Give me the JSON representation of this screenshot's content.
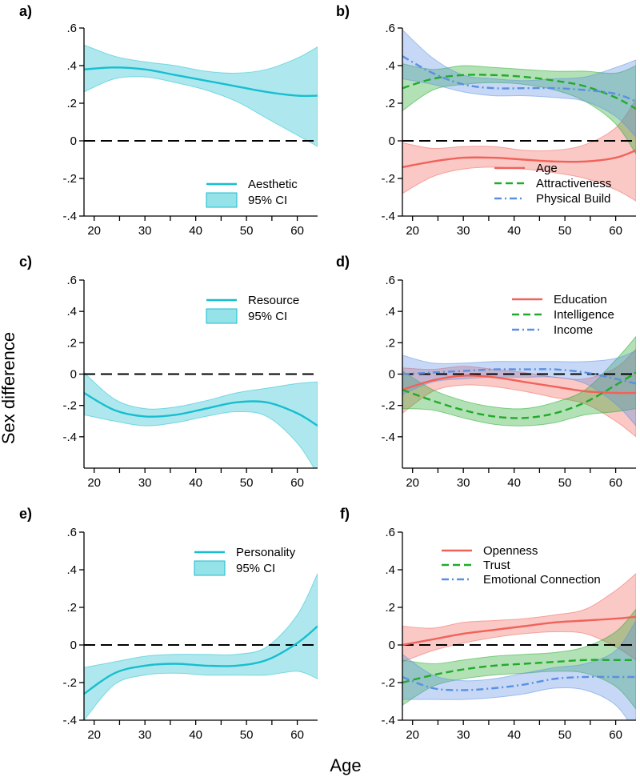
{
  "figure": {
    "ylabel": "Sex difference",
    "xlabel": "Age",
    "colors": {
      "cyan": "#17becf",
      "red": "#f0625a",
      "green": "#22aa2c",
      "blue": "#5b8fe3"
    }
  },
  "chart_data": [
    {
      "type": "line",
      "panel": "a)",
      "xticks": [
        "20",
        "30",
        "40",
        "50",
        "60"
      ],
      "yticks": [
        ".6",
        ".4",
        ".2",
        "0",
        "-.2",
        "-.4"
      ],
      "xlim": [
        18,
        64
      ],
      "ylim": [
        -0.4,
        0.6
      ],
      "legend_position": "bottom-right",
      "reference_line": 0,
      "series": [
        {
          "name": "Aesthetic",
          "ci_name": "95% CI",
          "color": "#17becf",
          "style": "solid",
          "x": [
            18,
            24,
            30,
            36,
            42,
            48,
            54,
            60,
            64
          ],
          "y": [
            0.38,
            0.39,
            0.38,
            0.35,
            0.32,
            0.29,
            0.26,
            0.24,
            0.24
          ],
          "lower": [
            0.26,
            0.33,
            0.34,
            0.31,
            0.27,
            0.21,
            0.12,
            0.03,
            -0.03
          ],
          "upper": [
            0.51,
            0.45,
            0.42,
            0.4,
            0.37,
            0.36,
            0.38,
            0.44,
            0.5
          ]
        }
      ]
    },
    {
      "type": "line",
      "panel": "b)",
      "xticks": [
        "20",
        "30",
        "40",
        "50",
        "60"
      ],
      "yticks": [
        ".6",
        ".4",
        ".2",
        "0",
        "-.2",
        "-.4"
      ],
      "xlim": [
        18,
        64
      ],
      "ylim": [
        -0.4,
        0.6
      ],
      "legend_position": "bottom-right",
      "reference_line": 0,
      "series": [
        {
          "name": "Age",
          "color": "#f0625a",
          "style": "solid",
          "x": [
            18,
            24,
            30,
            36,
            42,
            48,
            54,
            60,
            64
          ],
          "y": [
            -0.14,
            -0.11,
            -0.09,
            -0.09,
            -0.1,
            -0.11,
            -0.11,
            -0.09,
            -0.05
          ],
          "lower": [
            -0.28,
            -0.19,
            -0.15,
            -0.14,
            -0.15,
            -0.17,
            -0.2,
            -0.26,
            -0.32
          ],
          "upper": [
            -0.01,
            -0.04,
            -0.03,
            -0.03,
            -0.05,
            -0.05,
            -0.02,
            0.07,
            0.22
          ]
        },
        {
          "name": "Attractiveness",
          "color": "#22aa2c",
          "style": "dashed",
          "x": [
            18,
            24,
            30,
            36,
            42,
            48,
            54,
            60,
            64
          ],
          "y": [
            0.28,
            0.33,
            0.35,
            0.35,
            0.34,
            0.32,
            0.29,
            0.23,
            0.17
          ],
          "lower": [
            0.16,
            0.27,
            0.3,
            0.31,
            0.3,
            0.27,
            0.21,
            0.09,
            -0.07
          ],
          "upper": [
            0.41,
            0.38,
            0.4,
            0.39,
            0.38,
            0.37,
            0.37,
            0.36,
            0.4
          ]
        },
        {
          "name": "Physical Build",
          "color": "#5b8fe3",
          "style": "dashdot",
          "x": [
            18,
            24,
            30,
            36,
            42,
            48,
            54,
            60,
            64
          ],
          "y": [
            0.45,
            0.36,
            0.3,
            0.28,
            0.28,
            0.28,
            0.27,
            0.25,
            0.21
          ],
          "lower": [
            0.33,
            0.3,
            0.26,
            0.24,
            0.24,
            0.23,
            0.21,
            0.13,
            0.02
          ],
          "upper": [
            0.59,
            0.44,
            0.35,
            0.33,
            0.32,
            0.33,
            0.34,
            0.39,
            0.43
          ]
        }
      ]
    },
    {
      "type": "line",
      "panel": "c)",
      "xticks": [
        "20",
        "30",
        "40",
        "50",
        "60"
      ],
      "yticks": [
        ".6",
        ".4",
        ".2",
        "0",
        "-.2",
        "-.4"
      ],
      "xlim": [
        18,
        64
      ],
      "ylim": [
        -0.6,
        0.6
      ],
      "legend_position": "top-right",
      "reference_line": 0,
      "series": [
        {
          "name": "Resource",
          "ci_name": "95% CI",
          "color": "#17becf",
          "style": "solid",
          "x": [
            18,
            24,
            30,
            36,
            42,
            48,
            54,
            60,
            64
          ],
          "y": [
            -0.12,
            -0.23,
            -0.27,
            -0.26,
            -0.22,
            -0.18,
            -0.18,
            -0.25,
            -0.33
          ],
          "lower": [
            -0.26,
            -0.3,
            -0.33,
            -0.31,
            -0.27,
            -0.24,
            -0.27,
            -0.44,
            -0.64
          ],
          "upper": [
            0.01,
            -0.16,
            -0.22,
            -0.21,
            -0.17,
            -0.12,
            -0.09,
            -0.06,
            -0.05
          ]
        }
      ]
    },
    {
      "type": "line",
      "panel": "d)",
      "xticks": [
        "20",
        "30",
        "40",
        "50",
        "60"
      ],
      "yticks": [
        ".6",
        ".4",
        ".2",
        "0",
        "-.2",
        "-.4"
      ],
      "xlim": [
        18,
        64
      ],
      "ylim": [
        -0.6,
        0.6
      ],
      "legend_position": "top-right",
      "reference_line": 0,
      "series": [
        {
          "name": "Education",
          "color": "#f0625a",
          "style": "solid",
          "x": [
            18,
            24,
            30,
            36,
            42,
            48,
            54,
            60,
            64
          ],
          "y": [
            -0.1,
            -0.04,
            -0.01,
            -0.02,
            -0.05,
            -0.08,
            -0.11,
            -0.12,
            -0.12
          ],
          "lower": [
            -0.25,
            -0.11,
            -0.07,
            -0.08,
            -0.11,
            -0.15,
            -0.19,
            -0.3,
            -0.4
          ],
          "upper": [
            0.04,
            0.03,
            0.05,
            0.03,
            0.01,
            -0.02,
            -0.03,
            0.04,
            0.16
          ]
        },
        {
          "name": "Intelligence",
          "color": "#22aa2c",
          "style": "dashed",
          "x": [
            18,
            24,
            30,
            36,
            42,
            48,
            54,
            60,
            64
          ],
          "y": [
            -0.1,
            -0.17,
            -0.23,
            -0.27,
            -0.28,
            -0.25,
            -0.18,
            -0.07,
            0.01
          ],
          "lower": [
            -0.22,
            -0.23,
            -0.28,
            -0.32,
            -0.33,
            -0.31,
            -0.26,
            -0.24,
            -0.22
          ],
          "upper": [
            0.02,
            -0.1,
            -0.17,
            -0.21,
            -0.22,
            -0.18,
            -0.1,
            0.09,
            0.24
          ]
        },
        {
          "name": "Income",
          "color": "#5b8fe3",
          "style": "dashdot",
          "x": [
            18,
            24,
            30,
            36,
            42,
            48,
            54,
            60,
            64
          ],
          "y": [
            0.0,
            0.01,
            0.02,
            0.03,
            0.03,
            0.03,
            0.01,
            -0.03,
            -0.06
          ],
          "lower": [
            -0.13,
            -0.05,
            -0.03,
            -0.02,
            -0.02,
            -0.02,
            -0.06,
            -0.19,
            -0.33
          ],
          "upper": [
            0.12,
            0.07,
            0.07,
            0.08,
            0.08,
            0.08,
            0.08,
            0.1,
            0.15
          ]
        }
      ]
    },
    {
      "type": "line",
      "panel": "e)",
      "xticks": [
        "20",
        "30",
        "40",
        "50",
        "60"
      ],
      "yticks": [
        ".6",
        ".4",
        ".2",
        "0",
        "-.2",
        "-.4"
      ],
      "xlim": [
        18,
        64
      ],
      "ylim": [
        -0.4,
        0.6
      ],
      "legend_position": "top-right",
      "reference_line": 0,
      "series": [
        {
          "name": "Personality",
          "ci_name": "95% CI",
          "color": "#17becf",
          "style": "solid",
          "x": [
            18,
            24,
            30,
            36,
            42,
            48,
            54,
            60,
            64
          ],
          "y": [
            -0.26,
            -0.15,
            -0.11,
            -0.1,
            -0.11,
            -0.11,
            -0.08,
            0.01,
            0.1
          ],
          "lower": [
            -0.4,
            -0.21,
            -0.16,
            -0.15,
            -0.16,
            -0.16,
            -0.16,
            -0.14,
            -0.18
          ],
          "upper": [
            -0.12,
            -0.09,
            -0.06,
            -0.05,
            -0.05,
            -0.05,
            -0.01,
            0.16,
            0.38
          ]
        }
      ]
    },
    {
      "type": "line",
      "panel": "f)",
      "xticks": [
        "20",
        "30",
        "40",
        "50",
        "60"
      ],
      "yticks": [
        ".6",
        ".4",
        ".2",
        "0",
        "-.2",
        "-.4"
      ],
      "xlim": [
        18,
        64
      ],
      "ylim": [
        -0.4,
        0.6
      ],
      "legend_position": "top-right",
      "reference_line": 0,
      "series": [
        {
          "name": "Openness",
          "color": "#f0625a",
          "style": "solid",
          "x": [
            18,
            24,
            30,
            36,
            42,
            48,
            54,
            60,
            64
          ],
          "y": [
            0.0,
            0.03,
            0.06,
            0.08,
            0.1,
            0.12,
            0.13,
            0.14,
            0.15
          ],
          "lower": [
            -0.09,
            -0.03,
            0.01,
            0.04,
            0.06,
            0.07,
            0.06,
            -0.01,
            -0.08
          ],
          "upper": [
            0.1,
            0.09,
            0.12,
            0.13,
            0.14,
            0.16,
            0.19,
            0.29,
            0.38
          ]
        },
        {
          "name": "Trust",
          "color": "#22aa2c",
          "style": "dashed",
          "x": [
            18,
            24,
            30,
            36,
            42,
            48,
            54,
            60,
            64
          ],
          "y": [
            -0.2,
            -0.16,
            -0.13,
            -0.11,
            -0.1,
            -0.09,
            -0.08,
            -0.08,
            -0.08
          ],
          "lower": [
            -0.32,
            -0.22,
            -0.18,
            -0.16,
            -0.15,
            -0.14,
            -0.15,
            -0.22,
            -0.34
          ],
          "upper": [
            -0.08,
            -0.1,
            -0.08,
            -0.06,
            -0.05,
            -0.04,
            -0.01,
            0.07,
            0.19
          ]
        },
        {
          "name": "Emotional Connection",
          "color": "#5b8fe3",
          "style": "dashdot",
          "x": [
            18,
            24,
            30,
            36,
            42,
            48,
            54,
            60,
            64
          ],
          "y": [
            -0.17,
            -0.23,
            -0.24,
            -0.23,
            -0.21,
            -0.18,
            -0.17,
            -0.17,
            -0.17
          ],
          "lower": [
            -0.29,
            -0.29,
            -0.29,
            -0.28,
            -0.26,
            -0.23,
            -0.24,
            -0.32,
            -0.47
          ],
          "upper": [
            -0.05,
            -0.16,
            -0.19,
            -0.18,
            -0.15,
            -0.12,
            -0.1,
            -0.03,
            0.13
          ]
        }
      ]
    }
  ]
}
